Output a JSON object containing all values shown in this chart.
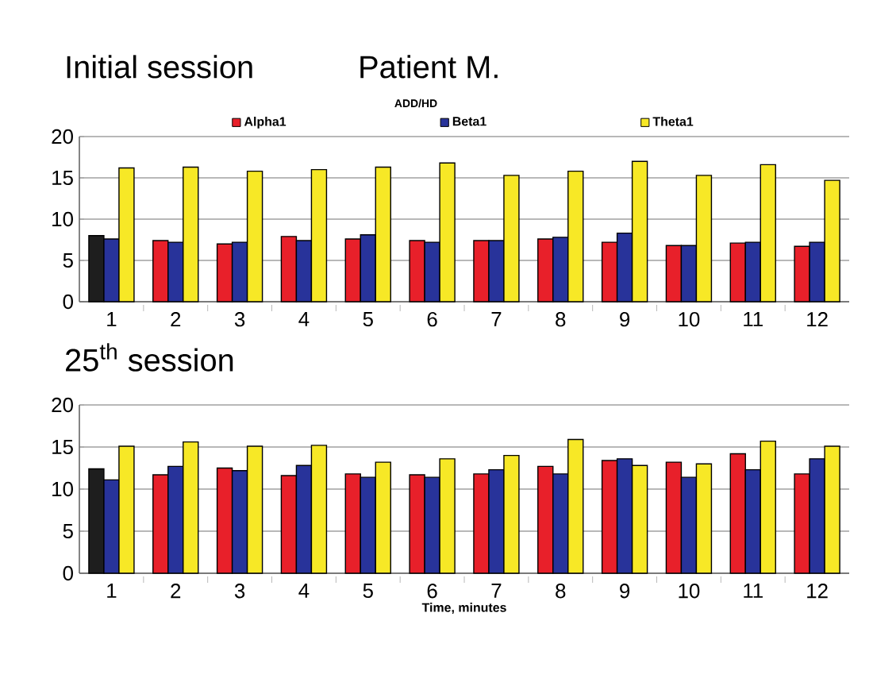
{
  "chart_data": [
    {
      "type": "bar",
      "title": "Initial session",
      "subtitle": "ADD/HD",
      "annotations": [
        "Patient M."
      ],
      "categories": [
        "1",
        "2",
        "3",
        "4",
        "5",
        "6",
        "7",
        "8",
        "9",
        "10",
        "11",
        "12"
      ],
      "series": [
        {
          "name": "Alpha1",
          "color": "#e8202a",
          "colors": [
            "#1e1e1e",
            "#e8202a",
            "#e8202a",
            "#e8202a",
            "#e8202a",
            "#e8202a",
            "#e8202a",
            "#e8202a",
            "#e8202a",
            "#e8202a",
            "#e8202a",
            "#e8202a"
          ],
          "values": [
            8.0,
            7.4,
            7.0,
            7.9,
            7.6,
            7.4,
            7.4,
            7.6,
            7.2,
            6.8,
            7.1,
            6.7
          ]
        },
        {
          "name": "Beta1",
          "color": "#28339a",
          "values": [
            7.6,
            7.2,
            7.2,
            7.4,
            8.1,
            7.2,
            7.4,
            7.8,
            8.3,
            6.8,
            7.2,
            7.2
          ]
        },
        {
          "name": "Theta1",
          "color": "#f7e826",
          "values": [
            16.2,
            16.3,
            15.8,
            16.0,
            16.3,
            16.8,
            15.3,
            15.8,
            17.0,
            15.3,
            16.6,
            14.7
          ]
        }
      ],
      "ylim": [
        0,
        20
      ],
      "yticks": [
        0,
        5,
        10,
        15,
        20
      ],
      "grid": "y",
      "legend": "top"
    },
    {
      "type": "bar",
      "title": "25$^{th}$ session",
      "xlabel": "Time, minutes",
      "categories": [
        "1",
        "2",
        "3",
        "4",
        "5",
        "6",
        "7",
        "8",
        "9",
        "10",
        "11",
        "12"
      ],
      "series": [
        {
          "color": "#e8202a",
          "colors": [
            "#1e1e1e",
            "#e8202a",
            "#e8202a",
            "#e8202a",
            "#e8202a",
            "#e8202a",
            "#e8202a",
            "#e8202a",
            "#e8202a",
            "#e8202a",
            "#e8202a",
            "#e8202a"
          ],
          "values": [
            12.4,
            11.7,
            12.5,
            11.6,
            11.8,
            11.7,
            11.8,
            12.7,
            13.4,
            13.2,
            14.2,
            11.8
          ]
        },
        {
          "color": "#28339a",
          "values": [
            11.1,
            12.7,
            12.2,
            12.8,
            11.4,
            11.4,
            12.3,
            11.8,
            13.6,
            11.4,
            12.3,
            13.6
          ]
        },
        {
          "color": "#f7e826",
          "values": [
            15.1,
            15.6,
            15.1,
            15.2,
            13.2,
            13.6,
            14.0,
            15.9,
            12.8,
            13.0,
            15.7,
            15.1
          ]
        }
      ],
      "ylim": [
        0,
        20
      ],
      "yticks": [
        0,
        5,
        10,
        15,
        20
      ],
      "grid": "y"
    }
  ]
}
